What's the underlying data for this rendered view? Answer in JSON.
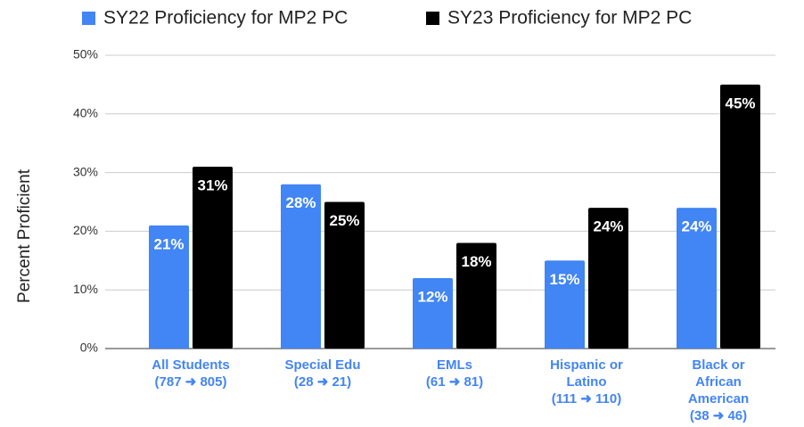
{
  "chart_data": {
    "type": "bar",
    "y_label": "Percent Proficient",
    "categories": [
      [
        "All Students",
        "(787 ➜ 805)"
      ],
      [
        "Special Edu",
        "(28 ➜ 21)"
      ],
      [
        "EMLs",
        "(61 ➜ 81)"
      ],
      [
        "Hispanic or",
        "Latino",
        "(111 ➜ 110)"
      ],
      [
        "Black or",
        "African",
        "American",
        "(38 ➜ 46)"
      ]
    ],
    "series": [
      {
        "name": "SY22 Proficiency for MP2 PC",
        "color": "#4285f4",
        "values": [
          21,
          28,
          12,
          15,
          24
        ],
        "value_labels": [
          "21%",
          "28%",
          "12%",
          "15%",
          "24%"
        ]
      },
      {
        "name": "SY23 Proficiency for MP2 PC",
        "color": "#000000",
        "values": [
          31,
          25,
          18,
          24,
          45
        ],
        "value_labels": [
          "31%",
          "25%",
          "18%",
          "24%",
          "45%"
        ]
      }
    ],
    "ylim": [
      0,
      50
    ],
    "yticks": [
      {
        "value": 0,
        "label": "0%"
      },
      {
        "value": 10,
        "label": "10%"
      },
      {
        "value": 20,
        "label": "20%"
      },
      {
        "value": 30,
        "label": "30%"
      },
      {
        "value": 40,
        "label": "40%"
      },
      {
        "value": 50,
        "label": "50%"
      }
    ],
    "grid": true,
    "legend": "top"
  }
}
